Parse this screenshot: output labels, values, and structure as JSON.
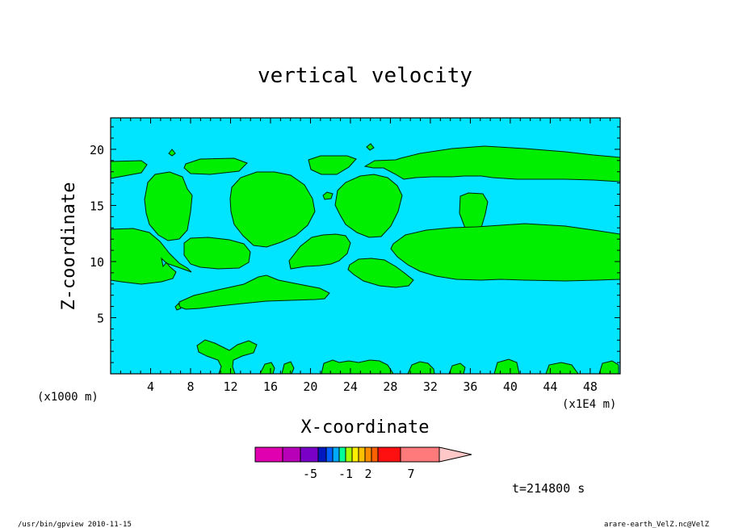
{
  "chart_data": {
    "type": "contour",
    "title": "vertical velocity",
    "xlabel": "X-coordinate",
    "ylabel": "Z-coordinate",
    "x_unit_left": "(x1000 m)",
    "x_unit_right": "(x1E4 m)",
    "x_ticks": [
      "4",
      "8",
      "12",
      "16",
      "20",
      "24",
      "28",
      "32",
      "36",
      "40",
      "44",
      "48"
    ],
    "x_tick_values": [
      4,
      8,
      12,
      16,
      20,
      24,
      28,
      32,
      36,
      40,
      44,
      48
    ],
    "y_ticks": [
      "5",
      "10",
      "15",
      "20"
    ],
    "y_tick_values": [
      5,
      10,
      15,
      20
    ],
    "xlim": [
      0,
      51
    ],
    "ylim": [
      0,
      22.8
    ],
    "background_color": "#00e5ff",
    "fill_color": "#00ee00",
    "colorbar": {
      "colors": [
        "#e000b0",
        "#b800b8",
        "#7a00c8",
        "#0018c0",
        "#0060ff",
        "#00aaff",
        "#00ff99",
        "#a8ff00",
        "#ffee00",
        "#ffc000",
        "#ff8c00",
        "#ff6000",
        "#ff1010",
        "#ff7a7a",
        "#ffc8c8"
      ],
      "labels": [
        "-5",
        "-1",
        "2",
        "7"
      ]
    },
    "timestamp": "t=214800 s"
  },
  "footer": {
    "left": "/usr/bin/gpview   2010-11-15",
    "right": "arare-earth_VelZ.nc@VelZ"
  }
}
